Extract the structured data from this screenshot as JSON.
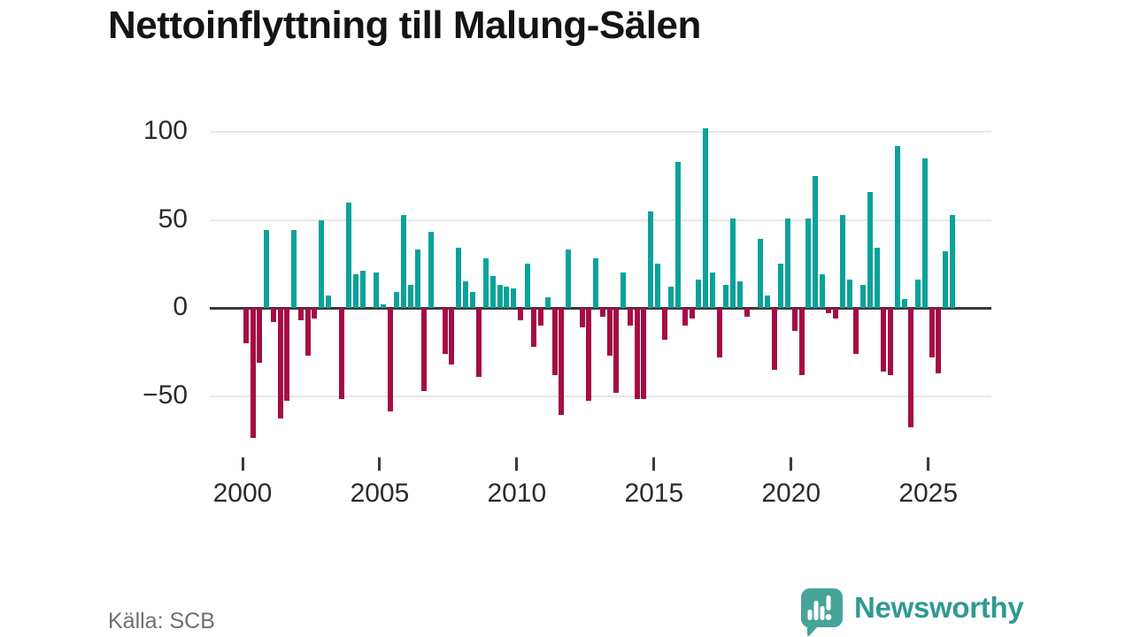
{
  "title": "Nettoinflyttning till Malung-Sälen",
  "source": "Källa: SCB",
  "branding": {
    "name": "Newsworthy",
    "icon": "newsworthy-speech-bubble-chart-icon",
    "wordmark_color": "#2f9a91",
    "icon_color": "#46a49b"
  },
  "colors": {
    "positive": "#0aa29a",
    "negative": "#a50c45",
    "axis": "#3a3a3a",
    "gridline": "#e7e7e7",
    "title_text": "#141414",
    "tick_text": "#2b2b2b",
    "source_text": "#6f6f6f"
  },
  "chart_data": {
    "type": "bar",
    "title": "Nettoinflyttning till Malung-Sälen",
    "frequency": "quarterly",
    "x_start": "2000-Q1",
    "x_end": "2025-Q4",
    "grid": "horizontal",
    "legend": "none",
    "ylim": [
      -80,
      110
    ],
    "yticks": [
      {
        "value": 100,
        "label": "100"
      },
      {
        "value": 50,
        "label": "50"
      },
      {
        "value": 0,
        "label": "0"
      },
      {
        "value": -50,
        "label": "−50"
      }
    ],
    "xticks": [
      {
        "value": 2000,
        "label": "2000"
      },
      {
        "value": 2005,
        "label": "2005"
      },
      {
        "value": 2010,
        "label": "2010"
      },
      {
        "value": 2015,
        "label": "2015"
      },
      {
        "value": 2020,
        "label": "2020"
      },
      {
        "value": 2025,
        "label": "2025"
      }
    ],
    "categories": [
      "2000Q1",
      "2000Q2",
      "2000Q3",
      "2000Q4",
      "2001Q1",
      "2001Q2",
      "2001Q3",
      "2001Q4",
      "2002Q1",
      "2002Q2",
      "2002Q3",
      "2002Q4",
      "2003Q1",
      "2003Q2",
      "2003Q3",
      "2003Q4",
      "2004Q1",
      "2004Q2",
      "2004Q3",
      "2004Q4",
      "2005Q1",
      "2005Q2",
      "2005Q3",
      "2005Q4",
      "2006Q1",
      "2006Q2",
      "2006Q3",
      "2006Q4",
      "2007Q1",
      "2007Q2",
      "2007Q3",
      "2007Q4",
      "2008Q1",
      "2008Q2",
      "2008Q3",
      "2008Q4",
      "2009Q1",
      "2009Q2",
      "2009Q3",
      "2009Q4",
      "2010Q1",
      "2010Q2",
      "2010Q3",
      "2010Q4",
      "2011Q1",
      "2011Q2",
      "2011Q3",
      "2011Q4",
      "2012Q1",
      "2012Q2",
      "2012Q3",
      "2012Q4",
      "2013Q1",
      "2013Q2",
      "2013Q3",
      "2013Q4",
      "2014Q1",
      "2014Q2",
      "2014Q3",
      "2014Q4",
      "2015Q1",
      "2015Q2",
      "2015Q3",
      "2015Q4",
      "2016Q1",
      "2016Q2",
      "2016Q3",
      "2016Q4",
      "2017Q1",
      "2017Q2",
      "2017Q3",
      "2017Q4",
      "2018Q1",
      "2018Q2",
      "2018Q3",
      "2018Q4",
      "2019Q1",
      "2019Q2",
      "2019Q3",
      "2019Q4",
      "2020Q1",
      "2020Q2",
      "2020Q3",
      "2020Q4",
      "2021Q1",
      "2021Q2",
      "2021Q3",
      "2021Q4",
      "2022Q1",
      "2022Q2",
      "2022Q3",
      "2022Q4",
      "2023Q1",
      "2023Q2",
      "2023Q3",
      "2023Q4",
      "2024Q1",
      "2024Q2",
      "2024Q3",
      "2024Q4",
      "2025Q1",
      "2025Q2",
      "2025Q3",
      "2025Q4"
    ],
    "values": [
      -20,
      -74,
      -31,
      44,
      -8,
      -63,
      -53,
      44,
      -7,
      -27,
      -6,
      50,
      7,
      0,
      -52,
      60,
      19,
      21,
      0,
      20,
      2,
      -59,
      9,
      53,
      13,
      33,
      -47,
      43,
      0,
      -26,
      -32,
      34,
      15,
      9,
      -39,
      28,
      18,
      13,
      12,
      11,
      -7,
      25,
      -22,
      -10,
      6,
      -38,
      -61,
      33,
      0,
      -11,
      -53,
      28,
      -5,
      -27,
      -48,
      20,
      -10,
      -52,
      -52,
      55,
      25,
      -18,
      12,
      83,
      -10,
      -6,
      16,
      102,
      20,
      -28,
      13,
      51,
      15,
      -5,
      0,
      39,
      7,
      -35,
      25,
      51,
      -13,
      -38,
      51,
      75,
      19,
      -3,
      -6,
      53,
      16,
      -26,
      13,
      66,
      34,
      -36,
      -38,
      92,
      5,
      -68,
      16,
      85,
      -28,
      -37,
      32,
      53
    ],
    "positive_color": "#0aa29a",
    "negative_color": "#a50c45"
  }
}
